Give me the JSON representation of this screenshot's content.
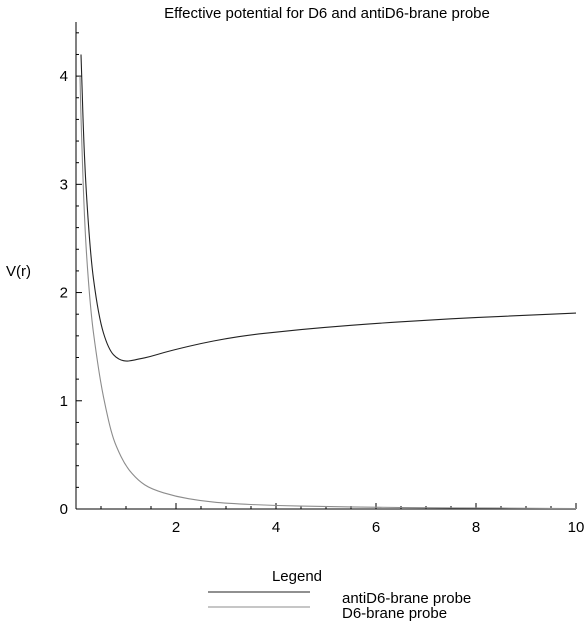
{
  "chart_data": {
    "type": "line",
    "title": "Effective potential for D6 and antiD6-brane probe",
    "xlabel": "",
    "ylabel": "V(r)",
    "xlim": [
      0,
      10
    ],
    "ylim": [
      0,
      4.5
    ],
    "xticks": [
      2,
      4,
      6,
      8,
      10
    ],
    "yticks": [
      0,
      1,
      2,
      3,
      4
    ],
    "grid": false,
    "legend": {
      "title": "Legend",
      "placement": "bottom-center"
    },
    "series": [
      {
        "name": "antiD6-brane probe",
        "color": "#222222",
        "x": [
          0.1,
          0.15,
          0.2,
          0.3,
          0.4,
          0.5,
          0.6,
          0.7,
          0.8,
          0.9,
          1.0,
          1.1,
          1.25,
          1.5,
          1.75,
          2.0,
          2.5,
          3.0,
          3.5,
          4.0,
          5.0,
          6.0,
          7.0,
          8.0,
          9.0,
          10.0
        ],
        "y": [
          4.2,
          3.45,
          2.95,
          2.3,
          1.95,
          1.7,
          1.55,
          1.45,
          1.4,
          1.375,
          1.365,
          1.37,
          1.385,
          1.41,
          1.445,
          1.475,
          1.53,
          1.575,
          1.61,
          1.635,
          1.68,
          1.715,
          1.745,
          1.77,
          1.79,
          1.81
        ]
      },
      {
        "name": "D6-brane probe",
        "color": "#8c8c8c",
        "x": [
          0.08,
          0.1,
          0.15,
          0.2,
          0.3,
          0.4,
          0.5,
          0.6,
          0.7,
          0.8,
          1.0,
          1.25,
          1.5,
          2.0,
          2.5,
          3.0,
          4.0,
          5.0,
          6.0,
          7.0,
          8.0,
          9.0,
          10.0
        ],
        "y": [
          4.0,
          3.6,
          2.9,
          2.4,
          1.8,
          1.45,
          1.15,
          0.92,
          0.72,
          0.58,
          0.39,
          0.26,
          0.185,
          0.115,
          0.075,
          0.052,
          0.032,
          0.022,
          0.016,
          0.012,
          0.009,
          0.007,
          0.005
        ]
      }
    ]
  }
}
